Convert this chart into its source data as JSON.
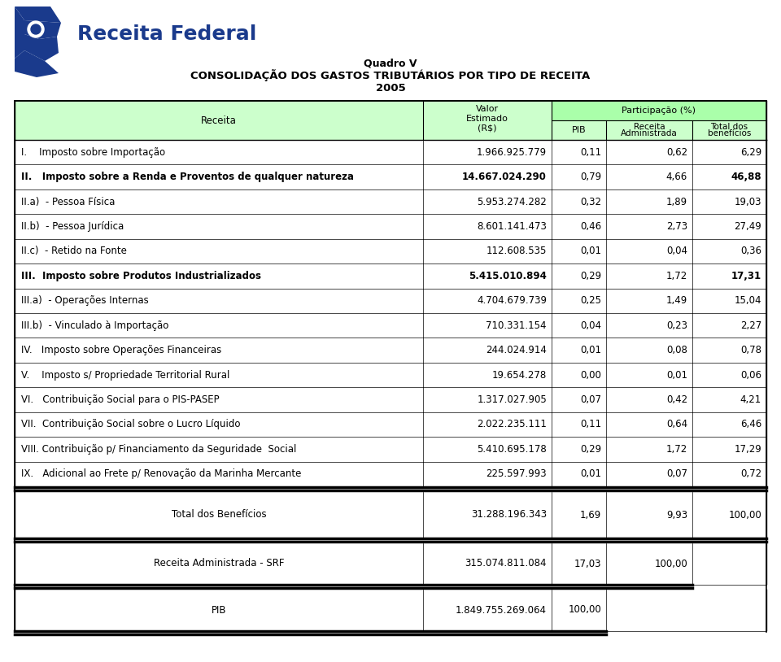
{
  "title_line1": "Quadro V",
  "title_line2": "CONSOLIDAÇÃO DOS GASTOS TRIBUTÁRIOS POR TIPO DE RECEITA",
  "title_line3": "2005",
  "header_col1": "Receita",
  "header_col2_line1": "Valor",
  "header_col2_line2": "Estimado",
  "header_col2_line3": "(R$)",
  "header_participacao": "Participação (%)",
  "header_pib": "PIB",
  "header_receita_adm_line1": "Receita",
  "header_receita_adm_line2": "Administrada",
  "header_total_line1": "Total dos",
  "header_total_line2": "benefícios",
  "rows": [
    {
      "label": "I.    Imposto sobre Importação",
      "valor": "1.966.925.779",
      "pib": "0,11",
      "rec_adm": "0,62",
      "total": "6,29",
      "bold": false
    },
    {
      "label": "II.   Imposto sobre a Renda e Proventos de qualquer natureza",
      "valor": "14.667.024.290",
      "pib": "0,79",
      "rec_adm": "4,66",
      "total": "46,88",
      "bold": true
    },
    {
      "label": "II.a)  - Pessoa Física",
      "valor": "5.953.274.282",
      "pib": "0,32",
      "rec_adm": "1,89",
      "total": "19,03",
      "bold": false
    },
    {
      "label": "II.b)  - Pessoa Jurídica",
      "valor": "8.601.141.473",
      "pib": "0,46",
      "rec_adm": "2,73",
      "total": "27,49",
      "bold": false
    },
    {
      "label": "II.c)  - Retido na Fonte",
      "valor": "112.608.535",
      "pib": "0,01",
      "rec_adm": "0,04",
      "total": "0,36",
      "bold": false
    },
    {
      "label": "III.  Imposto sobre Produtos Industrializados",
      "valor": "5.415.010.894",
      "pib": "0,29",
      "rec_adm": "1,72",
      "total": "17,31",
      "bold": true
    },
    {
      "label": "III.a)  - Operações Internas",
      "valor": "4.704.679.739",
      "pib": "0,25",
      "rec_adm": "1,49",
      "total": "15,04",
      "bold": false
    },
    {
      "label": "III.b)  - Vinculado à Importação",
      "valor": "710.331.154",
      "pib": "0,04",
      "rec_adm": "0,23",
      "total": "2,27",
      "bold": false
    },
    {
      "label": "IV.   Imposto sobre Operações Financeiras",
      "valor": "244.024.914",
      "pib": "0,01",
      "rec_adm": "0,08",
      "total": "0,78",
      "bold": false
    },
    {
      "label": "V.    Imposto s/ Propriedade Territorial Rural",
      "valor": "19.654.278",
      "pib": "0,00",
      "rec_adm": "0,01",
      "total": "0,06",
      "bold": false
    },
    {
      "label": "VI.   Contribuição Social para o PIS-PASEP",
      "valor": "1.317.027.905",
      "pib": "0,07",
      "rec_adm": "0,42",
      "total": "4,21",
      "bold": false
    },
    {
      "label": "VII.  Contribuição Social sobre o Lucro Líquido",
      "valor": "2.022.235.111",
      "pib": "0,11",
      "rec_adm": "0,64",
      "total": "6,46",
      "bold": false
    },
    {
      "label": "VIII. Contribuição p/ Financiamento da Seguridade  Social",
      "valor": "5.410.695.178",
      "pib": "0,29",
      "rec_adm": "1,72",
      "total": "17,29",
      "bold": false
    },
    {
      "label": "IX.   Adicional ao Frete p/ Renovação da Marinha Mercante",
      "valor": "225.597.993",
      "pib": "0,01",
      "rec_adm": "0,07",
      "total": "0,72",
      "bold": false
    }
  ],
  "footer_rows": [
    {
      "label": "Total dos Benefícios",
      "valor": "31.288.196.343",
      "pib": "1,69",
      "rec_adm": "9,93",
      "total": "100,00"
    },
    {
      "label": "Receita Administrada - SRF",
      "valor": "315.074.811.084",
      "pib": "17,03",
      "rec_adm": "100,00",
      "total": ""
    },
    {
      "label": "PIB",
      "valor": "1.849.755.269.064",
      "pib": "100,00",
      "rec_adm": "",
      "total": ""
    }
  ],
  "bg_color": "#ffffff",
  "header_bg": "#ccffcc",
  "participacao_bg": "#aaffaa",
  "logo_blue_dark": "#1a3a8c",
  "logo_blue_mid": "#2244aa",
  "text_blue": "#1a3a8c"
}
